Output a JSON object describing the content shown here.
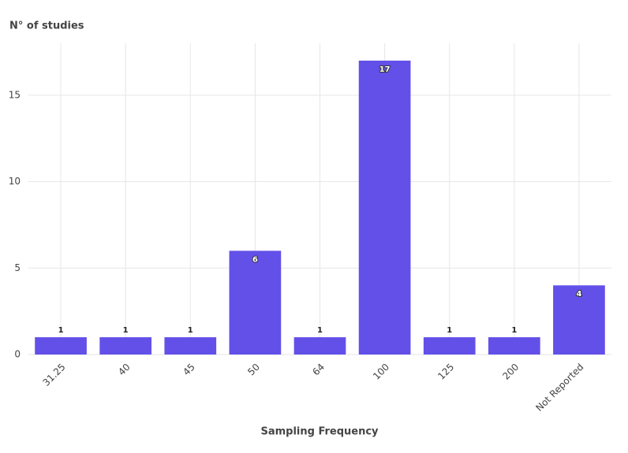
{
  "chart_data": {
    "type": "bar",
    "y_label": "N° of studies",
    "x_label": "Sampling Frequency",
    "categories": [
      "31.25",
      "40",
      "45",
      "50",
      "64",
      "100",
      "125",
      "200",
      "Not Reported"
    ],
    "values": [
      1,
      1,
      1,
      6,
      1,
      17,
      1,
      1,
      4
    ],
    "color": "#6350e8",
    "ylim": [
      0,
      18
    ],
    "yticks": [
      0,
      5,
      10,
      15
    ],
    "grid": true
  }
}
